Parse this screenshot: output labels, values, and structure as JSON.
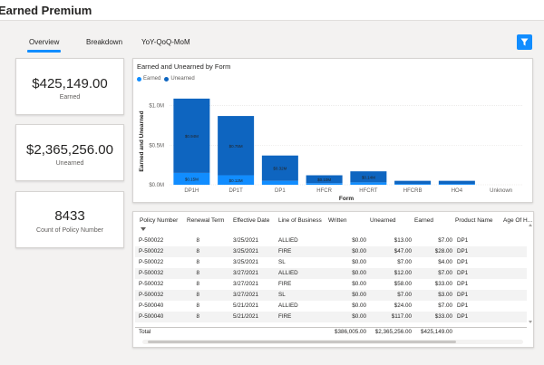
{
  "page": {
    "title": "Earned Premium"
  },
  "tabs": [
    "Overview",
    "Breakdown",
    "YoY-QoQ-MoM"
  ],
  "kpis": [
    {
      "value": "$425,149.00",
      "label": "Earned"
    },
    {
      "value": "$2,365,256.00",
      "label": "Unearned"
    },
    {
      "value": "8433",
      "label": "Count of Policy Number"
    }
  ],
  "chart_data": {
    "type": "bar",
    "title": "Earned and Unearned by Form",
    "xlabel": "Form",
    "ylabel": "Earned and Unearned",
    "categories": [
      "DP1H",
      "DP1T",
      "DP1",
      "HFCR",
      "HFCRT",
      "HFCRB",
      "HO4",
      "Unknown"
    ],
    "series": [
      {
        "name": "Earned",
        "color": "#118dff",
        "values": [
          0.15,
          0.12,
          0.05,
          0.02,
          0.03,
          0.01,
          0.01,
          0.0
        ],
        "labels": [
          "$0.15M",
          "$0.12M",
          "",
          "",
          "",
          "",
          "",
          ""
        ]
      },
      {
        "name": "Unearned",
        "color": "#0e65c0",
        "values": [
          0.94,
          0.75,
          0.32,
          0.1,
          0.14,
          0.04,
          0.04,
          0.0
        ],
        "labels": [
          "$0.94M",
          "$0.75M",
          "$0.32M",
          "$0.10M",
          "$0.14M",
          "",
          "",
          ""
        ]
      }
    ],
    "yticks": [
      "$0.0M",
      "$0.5M",
      "$1.0M"
    ],
    "ylim": [
      0,
      1.1
    ],
    "legend": "top-left",
    "grid": true
  },
  "table": {
    "columns": [
      "Policy Number",
      "Renewal Term",
      "Effective Date",
      "Line of Business",
      "Written",
      "Unearned",
      "Earned",
      "Product Name",
      "Age Of H..."
    ],
    "rows": [
      [
        "P-500022",
        "8",
        "3/25/2021",
        "ALLIED",
        "$0.00",
        "$13.00",
        "$7.00",
        "DP1"
      ],
      [
        "P-500022",
        "8",
        "3/25/2021",
        "FIRE",
        "$0.00",
        "$47.00",
        "$28.00",
        "DP1"
      ],
      [
        "P-500022",
        "8",
        "3/25/2021",
        "SL",
        "$0.00",
        "$7.00",
        "$4.00",
        "DP1"
      ],
      [
        "P-500032",
        "8",
        "3/27/2021",
        "ALLIED",
        "$0.00",
        "$12.00",
        "$7.00",
        "DP1"
      ],
      [
        "P-500032",
        "8",
        "3/27/2021",
        "FIRE",
        "$0.00",
        "$58.00",
        "$33.00",
        "DP1"
      ],
      [
        "P-500032",
        "8",
        "3/27/2021",
        "SL",
        "$0.00",
        "$7.00",
        "$3.00",
        "DP1"
      ],
      [
        "P-500040",
        "8",
        "5/21/2021",
        "ALLIED",
        "$0.00",
        "$24.00",
        "$7.00",
        "DP1"
      ],
      [
        "P-500040",
        "8",
        "5/21/2021",
        "FIRE",
        "$0.00",
        "$117.00",
        "$33.00",
        "DP1"
      ]
    ],
    "total": {
      "label": "Total",
      "written": "$386,005.00",
      "unearned": "$2,365,256.00",
      "earned": "$425,149.00"
    }
  },
  "icons": {
    "filter": "filter-icon"
  }
}
